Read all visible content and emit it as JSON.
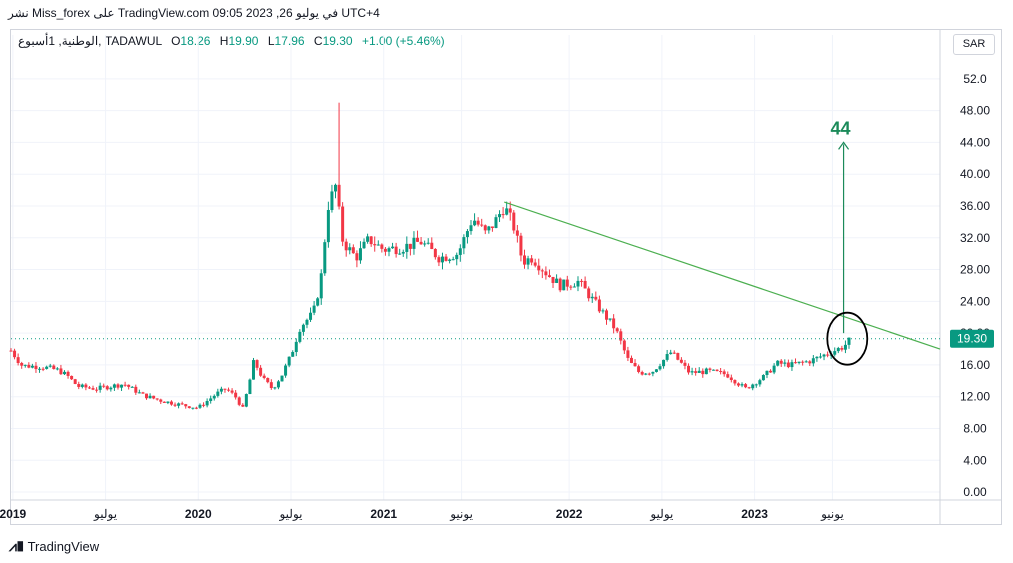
{
  "header": {
    "published_line": "نشر Miss_forex على TradingView.com في يوليو 26, 2023 09:05 UTC+4"
  },
  "legend": {
    "symbol": "الوطنية, 1أسبوع, TADAWUL",
    "open_label": "O",
    "open": "18.26",
    "high_label": "H",
    "high": "19.90",
    "low_label": "L",
    "low": "17.96",
    "close_label": "C",
    "close": "19.30",
    "change": "+1.00 (+5.46%)"
  },
  "currency": "SAR",
  "brand": "TradingView",
  "colors": {
    "up": "#089981",
    "down": "#f23645",
    "trendline": "#4caf50",
    "target_arrow": "#1b8a5a",
    "grid": "#f0f3fa",
    "axis_text": "#131722"
  },
  "chart_data": {
    "type": "candlestick",
    "y_axis_ticks": [
      "52.0",
      "48.00",
      "44.00",
      "40.00",
      "36.00",
      "32.00",
      "28.00",
      "24.00",
      "20.00",
      "16.00",
      "12.00",
      "8.00",
      "4.00",
      "0.00"
    ],
    "y_tick_values": [
      52,
      48,
      44,
      40,
      36,
      32,
      28,
      24,
      20,
      16,
      12,
      8,
      4,
      0
    ],
    "ylim": [
      -1,
      55
    ],
    "x_axis_ticks": [
      {
        "label": "2019",
        "t": 2019.0,
        "bold": true
      },
      {
        "label": "يوليو",
        "t": 2019.5,
        "bold": false
      },
      {
        "label": "2020",
        "t": 2020.0,
        "bold": true
      },
      {
        "label": "يوليو",
        "t": 2020.5,
        "bold": false
      },
      {
        "label": "2021",
        "t": 2021.0,
        "bold": true
      },
      {
        "label": "يونيو",
        "t": 2021.42,
        "bold": false
      },
      {
        "label": "2022",
        "t": 2022.0,
        "bold": true
      },
      {
        "label": "يوليو",
        "t": 2022.5,
        "bold": false
      },
      {
        "label": "2023",
        "t": 2023.0,
        "bold": true
      },
      {
        "label": "يونيو",
        "t": 2023.42,
        "bold": false
      }
    ],
    "xlim": [
      2018.99,
      2024.0
    ],
    "price_path": [
      [
        2018.99,
        17.8
      ],
      [
        2019.05,
        15.9
      ],
      [
        2019.15,
        15.8
      ],
      [
        2019.25,
        15.3
      ],
      [
        2019.3,
        14.5
      ],
      [
        2019.35,
        13.3
      ],
      [
        2019.45,
        13.0
      ],
      [
        2019.6,
        13.6
      ],
      [
        2019.7,
        12.2
      ],
      [
        2019.8,
        11.5
      ],
      [
        2019.9,
        11.0
      ],
      [
        2020.0,
        10.6
      ],
      [
        2020.1,
        12.4
      ],
      [
        2020.15,
        13.0
      ],
      [
        2020.2,
        12.0
      ],
      [
        2020.24,
        10.5
      ],
      [
        2020.27,
        13.2
      ],
      [
        2020.3,
        16.5
      ],
      [
        2020.35,
        14.2
      ],
      [
        2020.4,
        13.0
      ],
      [
        2020.45,
        14.7
      ],
      [
        2020.5,
        17.2
      ],
      [
        2020.55,
        20.8
      ],
      [
        2020.62,
        22.5
      ],
      [
        2020.66,
        26.5
      ],
      [
        2020.7,
        36.0
      ],
      [
        2020.74,
        38.5
      ],
      [
        2020.78,
        31.5
      ],
      [
        2020.85,
        29.5
      ],
      [
        2020.92,
        31.8
      ],
      [
        2021.0,
        30.5
      ],
      [
        2021.1,
        30.8
      ],
      [
        2021.2,
        31.5
      ],
      [
        2021.3,
        29.5
      ],
      [
        2021.4,
        30.0
      ],
      [
        2021.48,
        34.5
      ],
      [
        2021.55,
        32.5
      ],
      [
        2021.6,
        34.0
      ],
      [
        2021.65,
        36.0
      ],
      [
        2021.7,
        33.5
      ],
      [
        2021.75,
        29.0
      ],
      [
        2021.8,
        29.5
      ],
      [
        2021.88,
        27.5
      ],
      [
        2021.95,
        26.0
      ],
      [
        2022.05,
        26.5
      ],
      [
        2022.15,
        23.5
      ],
      [
        2022.25,
        20.5
      ],
      [
        2022.32,
        16.5
      ],
      [
        2022.38,
        15.0
      ],
      [
        2022.45,
        15.2
      ],
      [
        2022.55,
        17.6
      ],
      [
        2022.65,
        15.0
      ],
      [
        2022.75,
        15.2
      ],
      [
        2022.85,
        14.8
      ],
      [
        2022.95,
        13.0
      ],
      [
        2023.05,
        14.5
      ],
      [
        2023.12,
        16.2
      ],
      [
        2023.2,
        16.0
      ],
      [
        2023.3,
        16.5
      ],
      [
        2023.4,
        17.5
      ],
      [
        2023.48,
        18.3
      ],
      [
        2023.52,
        19.3
      ]
    ],
    "spike": {
      "t": 2020.75,
      "high": 49.0
    },
    "trendline": {
      "start": [
        2021.65,
        36.5
      ],
      "end": [
        2024.0,
        18.0
      ]
    },
    "target": {
      "t": 2023.48,
      "from": 20.0,
      "to": 44.0,
      "label": "44"
    },
    "highlight_circle": {
      "t": 2023.5,
      "price": 19.3
    },
    "last_price": {
      "value": 19.3,
      "label": "19.30"
    }
  }
}
